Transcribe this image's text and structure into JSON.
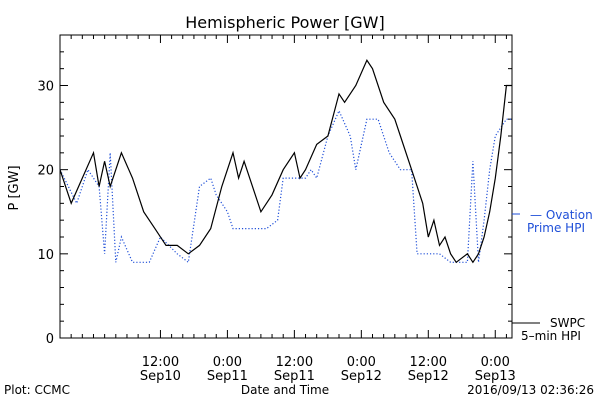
{
  "chart_data": {
    "type": "line",
    "title": "Hemispheric Power [GW]",
    "ylabel": "P [GW]",
    "xlabel": "Date and Time",
    "ylim": [
      0,
      36
    ],
    "xlim": [
      "2016-09-09 18:00",
      "2016-09-13 03:00"
    ],
    "yticks": [
      0,
      10,
      20,
      30
    ],
    "xticks": [
      {
        "t": "2016-09-10 12:00",
        "time": "12:00",
        "date": "Sep10"
      },
      {
        "t": "2016-09-11 00:00",
        "time": "0:00",
        "date": "Sep11"
      },
      {
        "t": "2016-09-11 12:00",
        "time": "12:00",
        "date": "Sep11"
      },
      {
        "t": "2016-09-12 00:00",
        "time": "0:00",
        "date": "Sep12"
      },
      {
        "t": "2016-09-12 12:00",
        "time": "12:00",
        "date": "Sep12"
      },
      {
        "t": "2016-09-13 00:00",
        "time": "0:00",
        "date": "Sep13"
      }
    ],
    "grid": false,
    "series": [
      {
        "name": "SWPC 5-min HPI",
        "color": "#000000",
        "style": "solid",
        "points": [
          [
            "2016-09-09 18:00",
            20
          ],
          [
            "2016-09-09 20:00",
            16
          ],
          [
            "2016-09-09 22:00",
            19
          ],
          [
            "2016-09-10 00:00",
            22
          ],
          [
            "2016-09-10 01:00",
            18
          ],
          [
            "2016-09-10 02:00",
            21
          ],
          [
            "2016-09-10 03:00",
            18
          ],
          [
            "2016-09-10 05:00",
            22
          ],
          [
            "2016-09-10 07:00",
            19
          ],
          [
            "2016-09-10 09:00",
            15
          ],
          [
            "2016-09-10 11:00",
            13
          ],
          [
            "2016-09-10 13:00",
            11
          ],
          [
            "2016-09-10 15:00",
            11
          ],
          [
            "2016-09-10 17:00",
            10
          ],
          [
            "2016-09-10 19:00",
            11
          ],
          [
            "2016-09-10 21:00",
            13
          ],
          [
            "2016-09-10 23:00",
            18
          ],
          [
            "2016-09-11 01:00",
            22
          ],
          [
            "2016-09-11 02:00",
            19
          ],
          [
            "2016-09-11 03:00",
            21
          ],
          [
            "2016-09-11 05:00",
            17
          ],
          [
            "2016-09-11 06:00",
            15
          ],
          [
            "2016-09-11 08:00",
            17
          ],
          [
            "2016-09-11 10:00",
            20
          ],
          [
            "2016-09-11 12:00",
            22
          ],
          [
            "2016-09-11 13:00",
            19
          ],
          [
            "2016-09-11 14:00",
            20
          ],
          [
            "2016-09-11 16:00",
            23
          ],
          [
            "2016-09-11 18:00",
            24
          ],
          [
            "2016-09-11 20:00",
            29
          ],
          [
            "2016-09-11 21:00",
            28
          ],
          [
            "2016-09-11 23:00",
            30
          ],
          [
            "2016-09-12 01:00",
            33
          ],
          [
            "2016-09-12 02:00",
            32
          ],
          [
            "2016-09-12 04:00",
            28
          ],
          [
            "2016-09-12 06:00",
            26
          ],
          [
            "2016-09-12 07:00",
            24
          ],
          [
            "2016-09-12 09:00",
            20
          ],
          [
            "2016-09-12 11:00",
            16
          ],
          [
            "2016-09-12 12:00",
            12
          ],
          [
            "2016-09-12 13:00",
            14
          ],
          [
            "2016-09-12 14:00",
            11
          ],
          [
            "2016-09-12 15:00",
            12
          ],
          [
            "2016-09-12 16:00",
            10
          ],
          [
            "2016-09-12 17:00",
            9
          ],
          [
            "2016-09-12 19:00",
            10
          ],
          [
            "2016-09-12 20:00",
            9
          ],
          [
            "2016-09-12 21:00",
            10
          ],
          [
            "2016-09-12 22:00",
            12
          ],
          [
            "2016-09-12 23:00",
            15
          ],
          [
            "2016-09-13 00:00",
            19
          ],
          [
            "2016-09-13 01:00",
            24
          ],
          [
            "2016-09-13 02:00",
            30
          ],
          [
            "2016-09-13 03:00",
            30
          ]
        ]
      },
      {
        "name": "Ovation Prime HPI",
        "color": "#1f4fd8",
        "style": "dotted",
        "points": [
          [
            "2016-09-09 18:00",
            20
          ],
          [
            "2016-09-09 21:00",
            16
          ],
          [
            "2016-09-09 23:00",
            20
          ],
          [
            "2016-09-10 01:00",
            18
          ],
          [
            "2016-09-10 02:00",
            10
          ],
          [
            "2016-09-10 03:00",
            22
          ],
          [
            "2016-09-10 04:00",
            9
          ],
          [
            "2016-09-10 05:00",
            12
          ],
          [
            "2016-09-10 07:00",
            9
          ],
          [
            "2016-09-10 10:00",
            9
          ],
          [
            "2016-09-10 12:00",
            12
          ],
          [
            "2016-09-10 15:00",
            10
          ],
          [
            "2016-09-10 17:00",
            9
          ],
          [
            "2016-09-10 19:00",
            18
          ],
          [
            "2016-09-10 21:00",
            19
          ],
          [
            "2016-09-10 22:00",
            17
          ],
          [
            "2016-09-11 00:00",
            15
          ],
          [
            "2016-09-11 01:00",
            13
          ],
          [
            "2016-09-11 04:00",
            13
          ],
          [
            "2016-09-11 07:00",
            13
          ],
          [
            "2016-09-11 09:00",
            14
          ],
          [
            "2016-09-11 10:00",
            19
          ],
          [
            "2016-09-11 12:00",
            19
          ],
          [
            "2016-09-11 14:00",
            19
          ],
          [
            "2016-09-11 15:00",
            20
          ],
          [
            "2016-09-11 16:00",
            19
          ],
          [
            "2016-09-11 18:00",
            24
          ],
          [
            "2016-09-11 20:00",
            27
          ],
          [
            "2016-09-11 22:00",
            24
          ],
          [
            "2016-09-11 23:00",
            20
          ],
          [
            "2016-09-12 01:00",
            26
          ],
          [
            "2016-09-12 03:00",
            26
          ],
          [
            "2016-09-12 05:00",
            22
          ],
          [
            "2016-09-12 07:00",
            20
          ],
          [
            "2016-09-12 09:00",
            20
          ],
          [
            "2016-09-12 10:00",
            10
          ],
          [
            "2016-09-12 12:00",
            10
          ],
          [
            "2016-09-12 14:00",
            10
          ],
          [
            "2016-09-12 16:00",
            9
          ],
          [
            "2016-09-12 19:00",
            9
          ],
          [
            "2016-09-12 20:00",
            21
          ],
          [
            "2016-09-12 21:00",
            9
          ],
          [
            "2016-09-12 22:00",
            14
          ],
          [
            "2016-09-12 23:00",
            20
          ],
          [
            "2016-09-13 00:00",
            24
          ],
          [
            "2016-09-13 01:00",
            25
          ],
          [
            "2016-09-13 02:00",
            26
          ],
          [
            "2016-09-13 03:00",
            26
          ]
        ]
      }
    ],
    "legend": {
      "placement": "right",
      "ovation_line1": "— Ovation",
      "ovation_line2": "Prime HPI",
      "swpc_line1": "SWPC",
      "swpc_line2": "5–min HPI"
    }
  },
  "footer": {
    "plot_credit": "Plot: CCMC",
    "center_label": "Date and Time",
    "timestamp": "2016/09/13 02:36:26"
  }
}
